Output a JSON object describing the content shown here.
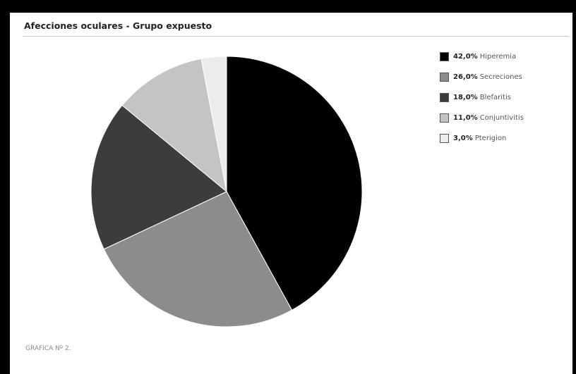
{
  "chart_data": {
    "type": "pie",
    "title": "Afecciones oculares - Grupo expuesto",
    "categories": [
      "Hiperemia",
      "Secreciones",
      "Blefaritis",
      "Conjuntivitis",
      "Pterigion"
    ],
    "values": [
      42.0,
      26.0,
      18.0,
      11.0,
      3.0
    ],
    "value_labels": [
      "42,0%",
      "26,0%",
      "18,0%",
      "11,0%",
      "3,0%"
    ],
    "colors": [
      "#000000",
      "#8c8c8c",
      "#3c3c3c",
      "#c4c4c4",
      "#ececec"
    ],
    "legend_position": "top-right",
    "start_angle": "top, clockwise"
  },
  "footer": {
    "note": "GRAFICA Nº 2."
  }
}
